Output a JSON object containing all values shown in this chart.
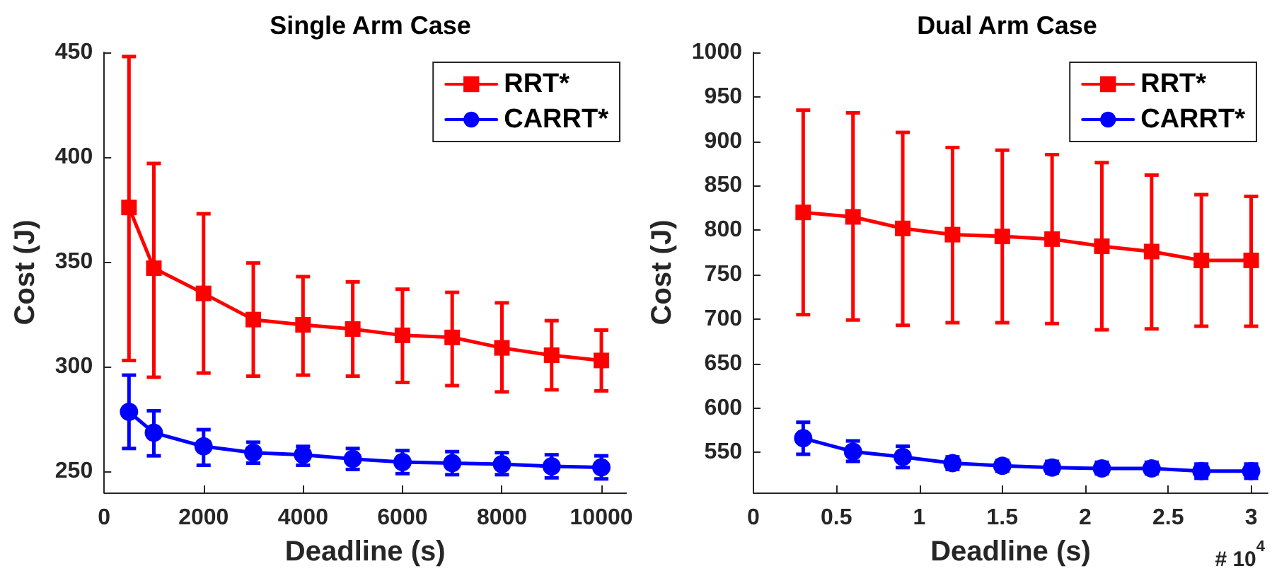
{
  "chart_data": [
    {
      "type": "line",
      "title": "Single Arm Case",
      "xlabel": "Deadline (s)",
      "ylabel": "Cost (J)",
      "x": [
        500,
        1000,
        2000,
        3000,
        4000,
        5000,
        6000,
        7000,
        8000,
        9000,
        10000
      ],
      "xlim": [
        0,
        10500
      ],
      "xticks": [
        0,
        2000,
        4000,
        6000,
        8000,
        10000
      ],
      "ylim": [
        240,
        450
      ],
      "yticks": [
        250,
        300,
        350,
        400,
        450
      ],
      "grid": false,
      "legend": "top right",
      "line_style": "solid",
      "series": [
        {
          "name": "RRT*",
          "color": "#ff0000",
          "marker": "square",
          "values": [
            376,
            347,
            335,
            322.5,
            320,
            318,
            315,
            314,
            309,
            305.5,
            303
          ],
          "errors": [
            [
              303,
              448
            ],
            [
              295,
              397
            ],
            [
              297,
              373
            ],
            [
              295.5,
              349.5
            ],
            [
              296,
              343
            ],
            [
              295.5,
              340.5
            ],
            [
              292.5,
              337
            ],
            [
              291,
              335.5
            ],
            [
              288,
              330.5
            ],
            [
              289,
              322
            ],
            [
              288.5,
              317.5
            ]
          ]
        },
        {
          "name": "CARRT*",
          "color": "#0000ff",
          "marker": "circle",
          "values": [
            278.5,
            268.5,
            262,
            259,
            258,
            256,
            254.5,
            254,
            253.5,
            252.5,
            252
          ],
          "errors": [
            [
              261,
              296
            ],
            [
              257.5,
              279
            ],
            [
              253,
              270
            ],
            [
              254,
              264
            ],
            [
              253,
              262
            ],
            [
              251,
              261
            ],
            [
              249,
              260
            ],
            [
              248.5,
              259.5
            ],
            [
              248.5,
              259
            ],
            [
              247,
              258
            ],
            [
              246.5,
              257.5
            ]
          ]
        }
      ]
    },
    {
      "type": "line",
      "title": "Dual Arm Case",
      "xlabel": "Deadline (s)",
      "ylabel": "Cost (J)",
      "x": [
        0.3,
        0.6,
        0.9,
        1.2,
        1.5,
        1.8,
        2.1,
        2.4,
        2.7,
        3.0
      ],
      "xlim": [
        0,
        3.1
      ],
      "xticks": [
        0,
        0.5,
        1,
        1.5,
        2,
        2.5,
        3
      ],
      "ylim": [
        505,
        1000
      ],
      "yticks": [
        550,
        600,
        650,
        700,
        750,
        800,
        850,
        900,
        950,
        1000
      ],
      "grid": false,
      "legend": "top right",
      "line_style": "solid",
      "annotations": [
        "# 10$^{4}$"
      ],
      "series": [
        {
          "name": "RRT*",
          "color": "#ff0000",
          "marker": "square",
          "values": [
            820,
            815,
            802,
            795,
            793,
            790,
            782,
            776,
            766,
            766
          ],
          "errors": [
            [
              705,
              935
            ],
            [
              699,
              932
            ],
            [
              693,
              910
            ],
            [
              696,
              893
            ],
            [
              696,
              890
            ],
            [
              695,
              885
            ],
            [
              688,
              876
            ],
            [
              689,
              862
            ],
            [
              692,
              840
            ],
            [
              692,
              838
            ]
          ]
        },
        {
          "name": "CARRT*",
          "color": "#0000ff",
          "marker": "circle",
          "values": [
            566,
            551,
            545,
            538,
            535,
            533,
            532,
            532,
            529,
            529
          ],
          "errors": [
            [
              548,
              584
            ],
            [
              540,
              563
            ],
            [
              533,
              557
            ],
            [
              531,
              545
            ],
            [
              529,
              541
            ],
            [
              527,
              540
            ],
            [
              526,
              539
            ],
            [
              526,
              539
            ],
            [
              521,
              537
            ],
            [
              521,
              537
            ]
          ]
        }
      ]
    }
  ]
}
